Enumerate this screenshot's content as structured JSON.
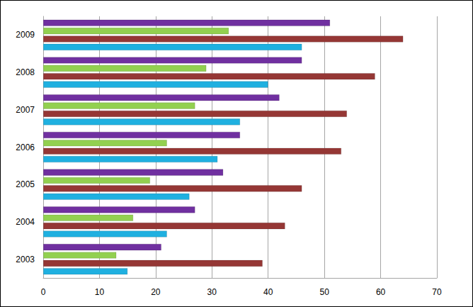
{
  "chart_data": {
    "type": "bar",
    "orientation": "horizontal",
    "categories": [
      "2003",
      "2004",
      "2005",
      "2006",
      "2007",
      "2008",
      "2009"
    ],
    "series": [
      {
        "color": "#7030a0",
        "values": [
          21,
          27,
          32,
          35,
          42,
          46,
          51
        ]
      },
      {
        "color": "#92d050",
        "values": [
          13,
          16,
          19,
          22,
          27,
          29,
          33
        ]
      },
      {
        "color": "#953735",
        "values": [
          39,
          43,
          46,
          53,
          54,
          59,
          64
        ]
      },
      {
        "color": "#1fb0e0",
        "values": [
          15,
          22,
          26,
          31,
          35,
          40,
          46
        ]
      }
    ],
    "xlim": [
      0,
      70
    ],
    "xticks": [
      0,
      10,
      20,
      30,
      40,
      50,
      60,
      70
    ],
    "grid": true
  }
}
